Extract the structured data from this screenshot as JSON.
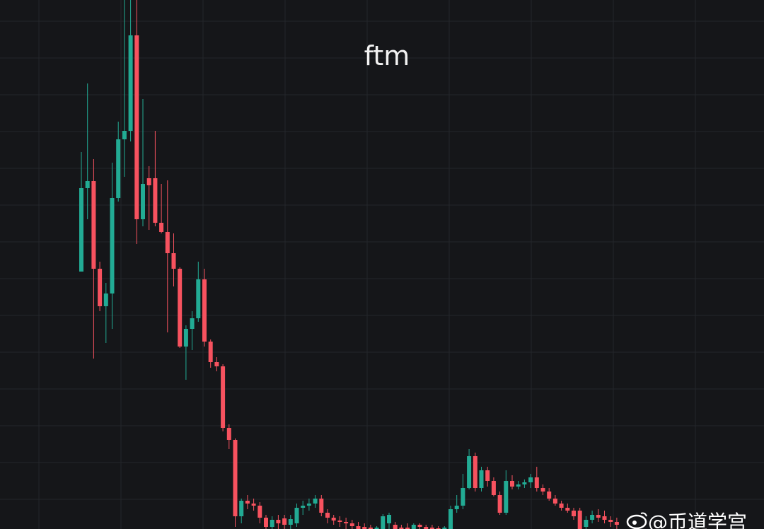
{
  "chart_data": {
    "type": "candlestick",
    "title": "ftm",
    "watermark": "@币道学宫",
    "up_color": "#22ab94",
    "down_color": "#f7525f",
    "grid": true,
    "ylim": [
      0,
      748
    ],
    "open": [
      364,
      482,
      492,
      368,
      315,
      333,
      468,
      551,
      563,
      698,
      438,
      496,
      496,
      433,
      420,
      390,
      368,
      258,
      283,
      298,
      353,
      265,
      236,
      230,
      143,
      126,
      18,
      40,
      36,
      33,
      16,
      3,
      13,
      15,
      6,
      8,
      30,
      33,
      36,
      43,
      23,
      16,
      12,
      10,
      8,
      4,
      3,
      2,
      0,
      0,
      8,
      6,
      2,
      2,
      0,
      6,
      3,
      2,
      1,
      0,
      0,
      28,
      33,
      58,
      103,
      58,
      83,
      68,
      48,
      23,
      68,
      60,
      63,
      66,
      73,
      58,
      53,
      43,
      36,
      30,
      26,
      26,
      3,
      13,
      20,
      18,
      13,
      10
    ],
    "high": [
      533,
      630,
      523,
      378,
      348,
      518,
      576,
      748,
      748,
      748,
      608,
      513,
      563,
      488,
      493,
      418,
      370,
      288,
      308,
      378,
      368,
      268,
      243,
      233,
      148,
      128,
      43,
      48,
      43,
      38,
      20,
      18,
      20,
      20,
      20,
      36,
      40,
      43,
      48,
      48,
      28,
      20,
      18,
      16,
      13,
      10,
      8,
      6,
      4,
      21,
      23,
      10,
      6,
      8,
      8,
      8,
      6,
      6,
      4,
      4,
      33,
      48,
      78,
      113,
      108,
      88,
      88,
      73,
      53,
      83,
      76,
      68,
      70,
      78,
      88,
      63,
      58,
      48,
      40,
      36,
      30,
      30,
      18,
      26,
      28,
      26,
      18,
      16
    ],
    "low": [
      364,
      438,
      241,
      308,
      263,
      283,
      463,
      498,
      548,
      403,
      428,
      423,
      428,
      418,
      278,
      343,
      256,
      211,
      253,
      293,
      258,
      228,
      223,
      138,
      113,
      3,
      8,
      28,
      26,
      8,
      0,
      0,
      0,
      0,
      0,
      3,
      20,
      26,
      30,
      18,
      8,
      6,
      3,
      0,
      0,
      0,
      0,
      0,
      0,
      0,
      0,
      0,
      0,
      0,
      0,
      0,
      0,
      0,
      0,
      0,
      0,
      23,
      28,
      56,
      53,
      53,
      60,
      46,
      20,
      20,
      56,
      56,
      58,
      58,
      53,
      48,
      40,
      33,
      26,
      23,
      13,
      0,
      0,
      8,
      10,
      8,
      3,
      0
    ],
    "close": [
      482,
      492,
      368,
      315,
      333,
      468,
      551,
      563,
      698,
      438,
      488,
      486,
      433,
      420,
      390,
      368,
      258,
      283,
      298,
      353,
      265,
      236,
      230,
      143,
      126,
      18,
      40,
      36,
      33,
      16,
      3,
      13,
      8,
      6,
      14,
      30,
      33,
      36,
      43,
      23,
      16,
      12,
      10,
      8,
      4,
      0,
      0,
      0,
      2,
      18,
      20,
      0,
      0,
      0,
      6,
      3,
      0,
      0,
      0,
      2,
      28,
      33,
      58,
      103,
      58,
      83,
      68,
      48,
      23,
      68,
      60,
      63,
      66,
      73,
      58,
      53,
      43,
      36,
      30,
      26,
      18,
      0,
      13,
      20,
      16,
      13,
      10,
      6
    ]
  }
}
